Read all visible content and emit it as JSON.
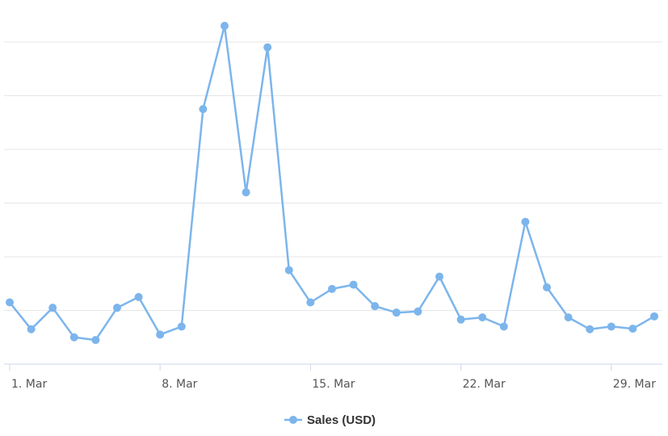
{
  "chart_data": {
    "type": "line",
    "x_start": "1. Mar",
    "x_axis_tick_labels": [
      "1. Mar",
      "8. Mar",
      "15. Mar",
      "22. Mar",
      "29. Mar"
    ],
    "x": [
      "1. Mar",
      "2. Mar",
      "3. Mar",
      "4. Mar",
      "5. Mar",
      "6. Mar",
      "7. Mar",
      "8. Mar",
      "9. Mar",
      "10. Mar",
      "11. Mar",
      "12. Mar",
      "13. Mar",
      "14. Mar",
      "15. Mar",
      "16. Mar",
      "17. Mar",
      "18. Mar",
      "19. Mar",
      "20. Mar",
      "21. Mar",
      "22. Mar",
      "23. Mar",
      "24. Mar",
      "25. Mar",
      "26. Mar",
      "27. Mar",
      "28. Mar",
      "29. Mar",
      "30. Mar",
      "31. Mar"
    ],
    "series": [
      {
        "name": "Sales (USD)",
        "color": "#7cb5ec",
        "values": [
          1.15,
          0.65,
          1.05,
          0.5,
          0.45,
          1.05,
          1.25,
          0.55,
          0.7,
          4.75,
          6.3,
          3.2,
          5.9,
          1.75,
          1.15,
          1.4,
          1.48,
          1.08,
          0.96,
          0.98,
          1.63,
          0.83,
          0.87,
          0.7,
          2.65,
          1.43,
          0.87,
          0.65,
          0.7,
          0.66,
          0.89
        ]
      }
    ],
    "ylim": [
      -0.5,
      6.5
    ],
    "y_gridlines": [
      0,
      1,
      2,
      3,
      4,
      5,
      6
    ],
    "y_tick_labels_visible": false,
    "grid": true,
    "legend": "bottom-center"
  }
}
